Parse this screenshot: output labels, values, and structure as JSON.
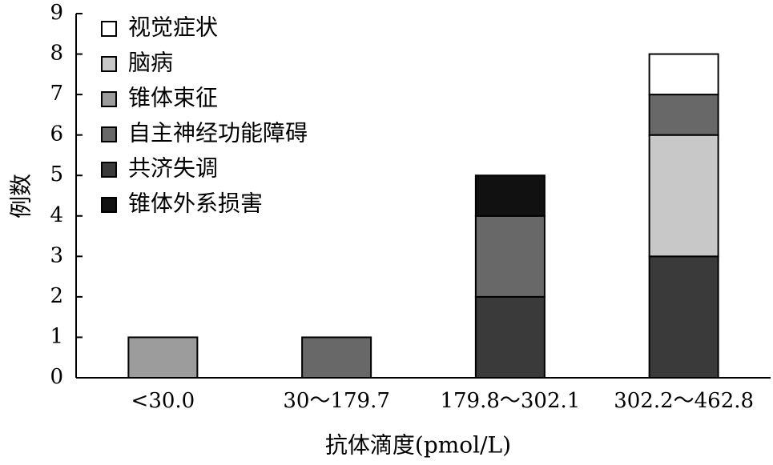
{
  "chart_data": {
    "type": "stacked_bar",
    "x_label": "抗体滴度(pmol/L)",
    "y_label": "例数",
    "categories": [
      "<30.0",
      "30～179.7",
      "179.8～302.1",
      "302.2～462.8"
    ],
    "series": [
      {
        "name": "视觉症状",
        "color": "#ffffff",
        "values": [
          0,
          0,
          0,
          1
        ]
      },
      {
        "name": "脑病",
        "color": "#c8c8c8",
        "values": [
          0,
          0,
          0,
          3
        ]
      },
      {
        "name": "锥体束征",
        "color": "#9c9c9c",
        "values": [
          1,
          0,
          0,
          0
        ]
      },
      {
        "name": "自主神经功能障碍",
        "color": "#686868",
        "values": [
          0,
          1,
          2,
          1
        ]
      },
      {
        "name": "共济失调",
        "color": "#3a3a3a",
        "values": [
          0,
          0,
          2,
          3
        ]
      },
      {
        "name": "锥体外系损害",
        "color": "#111111",
        "values": [
          0,
          0,
          1,
          0
        ]
      }
    ],
    "ylim": [
      0,
      9
    ],
    "yticks": [
      0,
      1,
      2,
      3,
      4,
      5,
      6,
      7,
      8,
      9
    ],
    "legend": "upper-left"
  }
}
